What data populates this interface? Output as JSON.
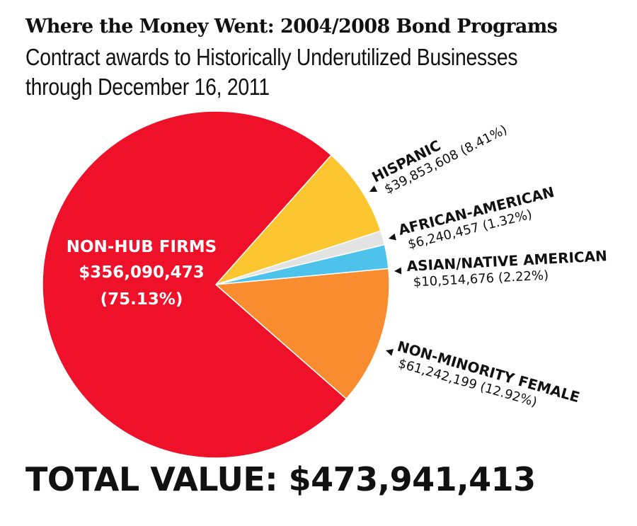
{
  "title": "Where the Money Went: 2004/2008 Bond Programs",
  "subtitle_line1": "Contract awards to Historically Underutilized Businesses",
  "subtitle_line2": "through December 16, 2011",
  "total": "TOTAL VALUE: $473,941,413",
  "chart_data": {
    "type": "pie",
    "slices": [
      {
        "name": "NON-HUB FIRMS",
        "value": 356090473,
        "value_label": "$356,090,473",
        "percent_label": "(75.13%)",
        "percent": 75.13,
        "color": "#ee1129"
      },
      {
        "name": "HISPANIC",
        "value": 39853608,
        "value_label": "$39,853,608 (8.41%)",
        "percent": 8.41,
        "color": "#fcc631"
      },
      {
        "name": "AFRICAN-AMERICAN",
        "value": 6240457,
        "value_label": "$6,240,457 (1.32%)",
        "percent": 1.32,
        "color": "#e3e3e3"
      },
      {
        "name": "ASIAN/NATIVE AMERICAN",
        "value": 10514676,
        "value_label": "$10,514,676 (2.22%)",
        "percent": 2.22,
        "color": "#4dc3ec"
      },
      {
        "name": "NON-MINORITY FEMALE",
        "value": 61242199,
        "value_label": "$61,242,199 (12.92%)",
        "percent": 12.92,
        "color": "#f98c2f"
      }
    ]
  }
}
